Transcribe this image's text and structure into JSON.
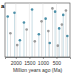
{
  "chart_data": {
    "type": "scatter",
    "title": "a",
    "x_label": "Million years ago (Ma)",
    "xlim": [
      2400,
      0
    ],
    "xticks": [
      2000,
      1500,
      1000,
      500
    ],
    "ylim": [
      0,
      10
    ],
    "tick_labels": "x",
    "grid": true,
    "series": [
      {
        "color": "#4a8fa8",
        "marker": "circle",
        "x": [
          2300,
          2050,
          1850,
          1700,
          1400,
          1150,
          900,
          750,
          550,
          400,
          250,
          100
        ],
        "values": [
          7.5,
          8.2,
          3.1,
          6.4,
          8.8,
          4.2,
          7.1,
          2.6,
          8.4,
          5.3,
          7.8,
          3.9
        ]
      },
      {
        "color": "#9a9a9a",
        "marker": "circle",
        "x": [
          2200,
          1950,
          1600,
          1300,
          1050,
          800,
          650,
          450,
          300,
          150
        ],
        "values": [
          4.4,
          2.2,
          5.1,
          2.9,
          6.6,
          4.8,
          9.0,
          2.1,
          6.0,
          8.6
        ]
      }
    ]
  }
}
